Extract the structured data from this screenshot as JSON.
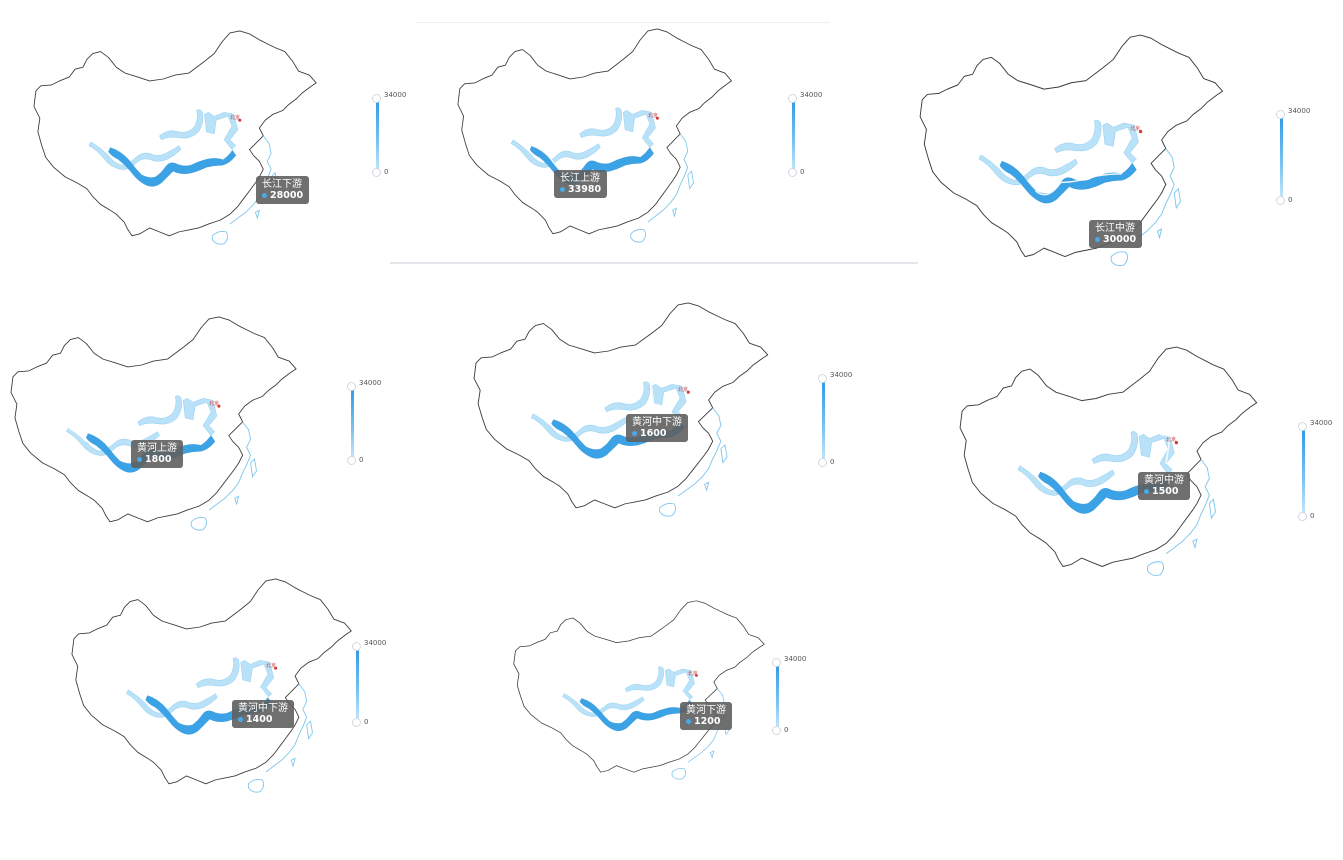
{
  "beijing_label": "北京",
  "colors": {
    "outline": "#3c3c3c",
    "coast": "#7ec6ee",
    "river_weak": "#b9e2f8",
    "river_strong": "#3ba2e6",
    "tooltip_bg": "#5f5f5f",
    "beijing": "#d23c3c"
  },
  "visual_map": {
    "max_label": "34000",
    "min_label": "0",
    "max": 34000,
    "min": 0
  },
  "panels": [
    {
      "highlight": "长江下游",
      "value": "28000",
      "emphasis": 0.82
    },
    {
      "highlight": "长江上游",
      "value": "33980",
      "emphasis": 1.0
    },
    {
      "highlight": "长江中游",
      "value": "30000",
      "emphasis": 0.88
    },
    {
      "highlight": "黄河上游",
      "value": "1800",
      "emphasis": 0.05
    },
    {
      "highlight": "黄河中下游",
      "value": "1600",
      "emphasis": 0.05
    },
    {
      "highlight": "黄河中游",
      "value": "1500",
      "emphasis": 0.04
    },
    {
      "highlight": "黄河中下游",
      "value": "1400",
      "emphasis": 0.04
    },
    {
      "highlight": "黄河下游",
      "value": "1200",
      "emphasis": 0.035
    }
  ]
}
